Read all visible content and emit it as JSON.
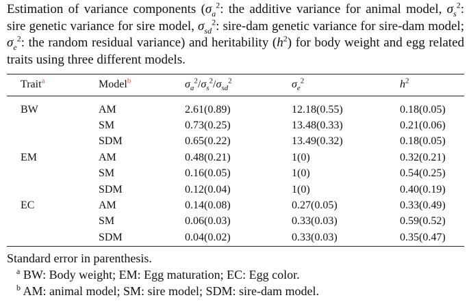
{
  "caption": {
    "prefix": "Estimation of variance components (",
    "desc_a": ": the additive variance for animal model, ",
    "desc_s": ": sire genetic variance for sire model, ",
    "desc_sd": ": sire-dam genetic variance for sire-dam model; ",
    "desc_e": ": the random residual variance) and heritability (",
    "suffix": ") for body weight and egg related traits using three different models."
  },
  "table": {
    "headers": {
      "trait": "Trait",
      "trait_note": "a",
      "model": "Model",
      "model_note": "b"
    },
    "rows": [
      {
        "trait": "BW",
        "model": "AM",
        "var": "2.61(0.89)",
        "resid": "12.18(0.55)",
        "h2": "0.18(0.05)"
      },
      {
        "trait": "",
        "model": "SM",
        "var": "0.73(0.25)",
        "resid": "13.48(0.33)",
        "h2": "0.21(0.06)"
      },
      {
        "trait": "",
        "model": "SDM",
        "var": "0.65(0.22)",
        "resid": "13.49(0.32)",
        "h2": "0.18(0.05)"
      },
      {
        "trait": "EM",
        "model": "AM",
        "var": "0.48(0.21)",
        "resid": "1(0)",
        "h2": "0.32(0.21)"
      },
      {
        "trait": "",
        "model": "SM",
        "var": "0.16(0.05)",
        "resid": "1(0)",
        "h2": "0.54(0.25)"
      },
      {
        "trait": "",
        "model": "SDM",
        "var": "0.12(0.04)",
        "resid": "1(0)",
        "h2": "0.40(0.19)"
      },
      {
        "trait": "EC",
        "model": "AM",
        "var": "0.14(0.08)",
        "resid": "0.27(0.05)",
        "h2": "0.33(0.49)"
      },
      {
        "trait": "",
        "model": "SM",
        "var": "0.06(0.03)",
        "resid": "0.33(0.03)",
        "h2": "0.59(0.52)"
      },
      {
        "trait": "",
        "model": "SDM",
        "var": "0.04(0.02)",
        "resid": "0.33(0.03)",
        "h2": "0.35(0.47)"
      }
    ]
  },
  "footnotes": {
    "standard_error": "Standard error in parenthesis.",
    "a_mark": "a",
    "a_text": "BW: Body weight; EM: Egg maturation; EC: Egg color.",
    "b_mark": "b",
    "b_text": "AM: animal model; SM: sire model; SDM: sire-dam model."
  },
  "colors": {
    "footnote_marker": "#d24a3a"
  }
}
